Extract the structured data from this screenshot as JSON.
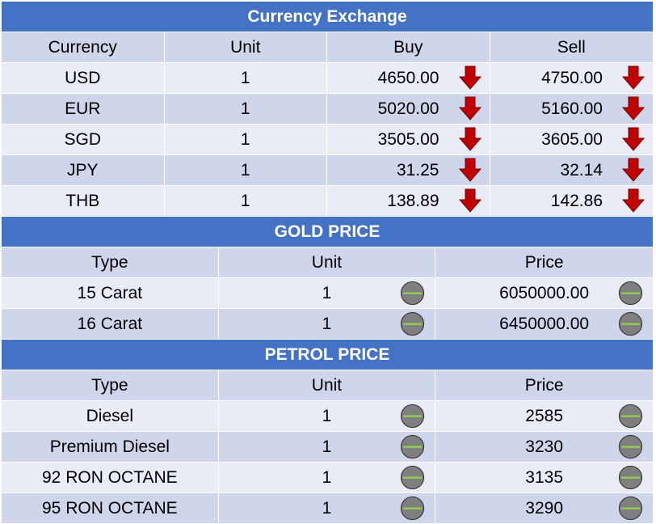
{
  "currency": {
    "title": "Currency Exchange",
    "headers": [
      "Currency",
      "Unit",
      "Buy",
      "Sell"
    ],
    "rows": [
      {
        "currency": "USD",
        "unit": "1",
        "buy": "4650.00",
        "sell": "4750.00"
      },
      {
        "currency": "EUR",
        "unit": "1",
        "buy": "5020.00",
        "sell": "5160.00"
      },
      {
        "currency": "SGD",
        "unit": "1",
        "buy": "3505.00",
        "sell": "3605.00"
      },
      {
        "currency": "JPY",
        "unit": "1",
        "buy": "31.25",
        "sell": "32.14"
      },
      {
        "currency": "THB",
        "unit": "1",
        "buy": "138.89",
        "sell": "142.86"
      }
    ],
    "trend_icon": "arrow-down-icon",
    "trend_color": "#c00000"
  },
  "gold": {
    "title": "GOLD PRICE",
    "headers": [
      "Type",
      "Unit",
      "Price"
    ],
    "rows": [
      {
        "type": "15 Carat",
        "unit": "1",
        "price": "6050000.00"
      },
      {
        "type": "16 Carat",
        "unit": "1",
        "price": "6450000.00"
      }
    ],
    "trend_icon": "no-change-icon"
  },
  "petrol": {
    "title": "PETROL PRICE",
    "headers": [
      "Type",
      "Unit",
      "Price"
    ],
    "rows": [
      {
        "type": "Diesel",
        "unit": "1",
        "price": "2585"
      },
      {
        "type": "Premium Diesel",
        "unit": "1",
        "price": "3230"
      },
      {
        "type": "92 RON OCTANE",
        "unit": "1",
        "price": "3135"
      },
      {
        "type": "95 RON OCTANE",
        "unit": "1",
        "price": "3290"
      }
    ],
    "trend_icon": "no-change-icon"
  },
  "colors": {
    "header_bg": "#4472c4",
    "row_dark": "#cfd5ea",
    "row_light": "#e9ebf5",
    "down_arrow": "#c00000",
    "neutral_circle": "#7f7f7f",
    "neutral_line": "#92d050"
  }
}
